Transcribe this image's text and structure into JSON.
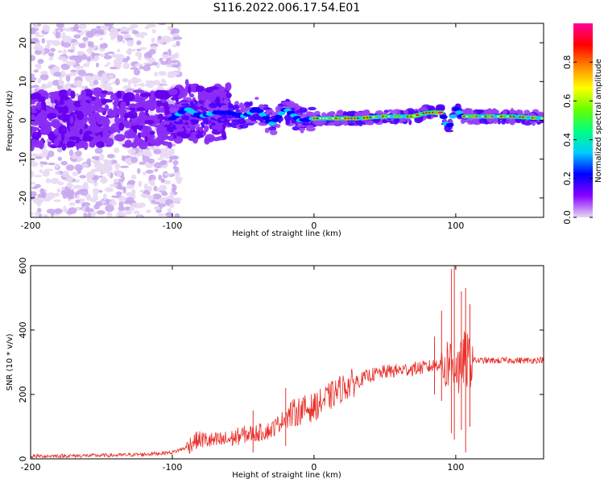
{
  "title": "S116.2022.006.17.54.E01",
  "chart_data": [
    {
      "type": "heatmap",
      "xlabel": "Height of straight line (km)",
      "ylabel": "Frequency (Hz)",
      "xlim": [
        -200,
        162
      ],
      "ylim": [
        -25,
        25
      ],
      "xticks": [
        -200,
        -100,
        0,
        100
      ],
      "yticks": [
        -20,
        -10,
        0,
        10,
        20
      ],
      "grid": false,
      "colorbar": {
        "label": "Normalized spectral amplitude",
        "range": [
          0,
          1
        ],
        "ticks": [
          "0.0",
          "0.2",
          "0.4",
          "0.6",
          "0.8"
        ],
        "colors": [
          "#e8d8f4",
          "#8800ff",
          "#0000ff",
          "#00ccff",
          "#00ff80",
          "#66ff00",
          "#ffff00",
          "#ff8800",
          "#ff0000",
          "#ff0099"
        ]
      },
      "ridge": {
        "x": [
          -200,
          -150,
          -100,
          -90,
          -80,
          -70,
          -60,
          -50,
          -40,
          -30,
          -20,
          -10,
          0,
          10,
          30,
          50,
          70,
          80,
          90,
          95,
          100,
          105,
          120,
          140,
          162
        ],
        "y": [
          0,
          0.5,
          0.5,
          3,
          1,
          2,
          2,
          1,
          3,
          -1,
          3,
          0,
          0.5,
          0.5,
          0.5,
          1,
          1,
          2,
          2,
          -2,
          3,
          1,
          1,
          1,
          0.5
        ]
      }
    },
    {
      "type": "line",
      "xlabel": "Height of straight line (km)",
      "ylabel": "SNR (10 * v/v)",
      "xlim": [
        -200,
        162
      ],
      "ylim": [
        0,
        600
      ],
      "xticks": [
        -200,
        -100,
        0,
        100
      ],
      "yticks": [
        0,
        200,
        400,
        600
      ],
      "grid": false,
      "series": [
        {
          "color": "#e8302a",
          "x": [
            -200,
            -180,
            -160,
            -140,
            -120,
            -100,
            -90,
            -85,
            -80,
            -70,
            -60,
            -50,
            -40,
            -30,
            -20,
            -10,
            0,
            10,
            20,
            30,
            40,
            50,
            60,
            70,
            80,
            85,
            90,
            93,
            95,
            97,
            100,
            103,
            105,
            108,
            110,
            115,
            120,
            130,
            140,
            150,
            162
          ],
          "y": [
            8,
            9,
            10,
            11,
            14,
            20,
            35,
            55,
            60,
            55,
            60,
            75,
            80,
            90,
            130,
            150,
            160,
            190,
            220,
            240,
            260,
            270,
            275,
            280,
            285,
            290,
            300,
            280,
            310,
            290,
            300,
            260,
            320,
            300,
            310,
            305,
            305,
            305,
            306,
            305,
            308
          ]
        }
      ],
      "spikes": [
        {
          "x": -43,
          "ymin": 20,
          "ymax": 150
        },
        {
          "x": -20,
          "ymin": 40,
          "ymax": 220
        },
        {
          "x": 85,
          "ymin": 200,
          "ymax": 380
        },
        {
          "x": 90,
          "ymin": 180,
          "ymax": 460
        },
        {
          "x": 97,
          "ymin": 80,
          "ymax": 590
        },
        {
          "x": 99,
          "ymin": 60,
          "ymax": 650
        },
        {
          "x": 104,
          "ymin": 90,
          "ymax": 520
        },
        {
          "x": 107,
          "ymin": 20,
          "ymax": 530
        },
        {
          "x": 110,
          "ymin": 100,
          "ymax": 480
        }
      ]
    }
  ]
}
